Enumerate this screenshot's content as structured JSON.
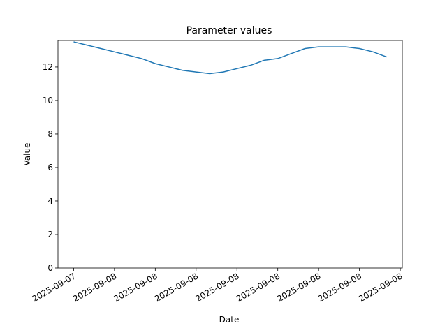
{
  "chart_data": {
    "type": "line",
    "title": "Parameter values",
    "xlabel": "Date",
    "ylabel": "Value",
    "x": [
      0,
      1,
      2,
      3,
      4,
      5,
      6,
      7,
      8,
      9,
      10,
      11,
      12,
      13,
      14,
      15,
      16,
      17,
      18,
      19,
      20,
      21,
      22,
      23
    ],
    "series": [
      {
        "name": "Value",
        "color": "#1f77b4",
        "values": [
          13.5,
          13.3,
          13.1,
          12.9,
          12.7,
          12.5,
          12.2,
          12.0,
          11.8,
          11.7,
          11.6,
          11.7,
          11.9,
          12.1,
          12.4,
          12.5,
          12.8,
          13.1,
          13.2,
          13.2,
          13.2,
          13.1,
          12.9,
          12.6
        ]
      }
    ],
    "xlim": [
      -1.15,
      24.15
    ],
    "xticks": [
      {
        "value": 0,
        "label": "2025-09-07"
      },
      {
        "value": 3,
        "label": "2025-09-08"
      },
      {
        "value": 6,
        "label": "2025-09-08"
      },
      {
        "value": 9,
        "label": "2025-09-08"
      },
      {
        "value": 12,
        "label": "2025-09-08"
      },
      {
        "value": 15,
        "label": "2025-09-08"
      },
      {
        "value": 18,
        "label": "2025-09-08"
      },
      {
        "value": 21,
        "label": "2025-09-08"
      },
      {
        "value": 24,
        "label": "2025-09-08"
      }
    ],
    "ylim": [
      0,
      13.58
    ],
    "yticks": [
      0,
      2,
      4,
      6,
      8,
      10,
      12
    ]
  }
}
